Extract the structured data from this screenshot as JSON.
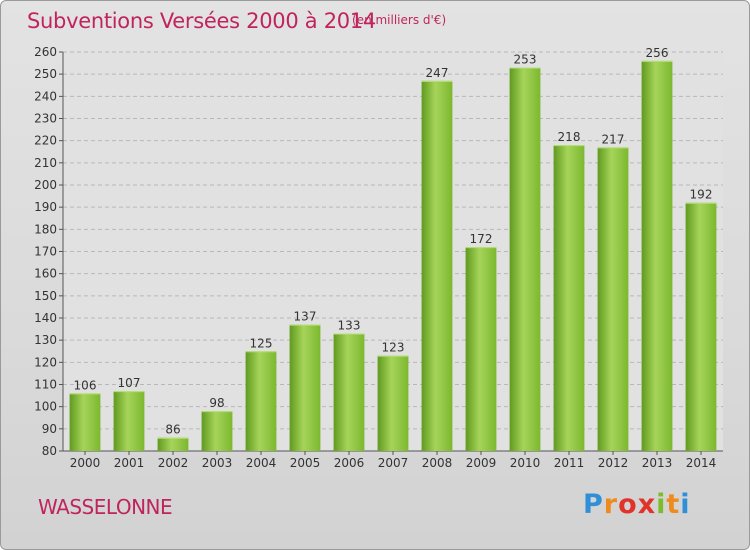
{
  "chart_data": {
    "type": "bar",
    "title": "Subventions Versées 2000 à 2014",
    "subtitle": "(en milliers d'€)",
    "categories": [
      "2000",
      "2001",
      "2002",
      "2003",
      "2004",
      "2005",
      "2006",
      "2007",
      "2008",
      "2009",
      "2010",
      "2011",
      "2012",
      "2013",
      "2014"
    ],
    "values": [
      106,
      107,
      86,
      98,
      125,
      137,
      133,
      123,
      247,
      172,
      253,
      218,
      217,
      256,
      192
    ],
    "ylim": [
      80,
      260
    ],
    "ytick_step": 10,
    "grid": true,
    "bar_color": "#7cb82f",
    "bar_color_light": "#a6d45a",
    "bar_color_dark": "#5f9a1e"
  },
  "footer": {
    "commune": "WASSELONNE",
    "logo_letters": [
      "P",
      "r",
      "o",
      "x",
      "i",
      "t",
      "i"
    ]
  },
  "colors": {
    "title": "#c0245c"
  }
}
